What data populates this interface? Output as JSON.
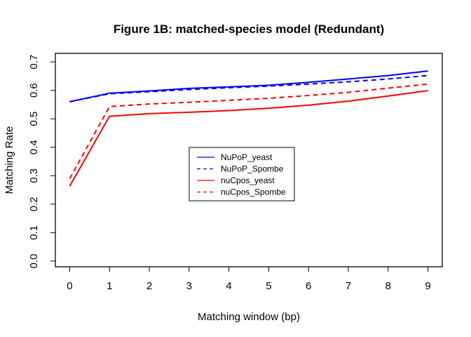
{
  "chart_data": {
    "type": "line",
    "title": "Figure 1B: matched-species model (Redundant)",
    "xlabel": "Matching window (bp)",
    "ylabel": "Matching Rate",
    "x": [
      0,
      1,
      2,
      3,
      4,
      5,
      6,
      7,
      8,
      9
    ],
    "xlim": [
      -0.36,
      9.36
    ],
    "ylim": [
      -0.02,
      0.73
    ],
    "xticks": [
      0,
      1,
      2,
      3,
      4,
      5,
      6,
      7,
      8,
      9
    ],
    "xtick_labels": [
      "0",
      "1",
      "2",
      "3",
      "4",
      "5",
      "6",
      "7",
      "8",
      "9"
    ],
    "yticks": [
      0.0,
      0.1,
      0.2,
      0.3,
      0.4,
      0.5,
      0.6,
      0.7
    ],
    "ytick_labels": [
      "0.0",
      "0.1",
      "0.2",
      "0.3",
      "0.4",
      "0.5",
      "0.6",
      "0.7"
    ],
    "grid": false,
    "legend_position": "center",
    "series": [
      {
        "name": "NuPoP_yeast",
        "color": "#0000ff",
        "dash": "solid",
        "values": [
          0.56,
          0.59,
          0.598,
          0.607,
          0.612,
          0.618,
          0.628,
          0.64,
          0.652,
          0.668
        ]
      },
      {
        "name": "NuPoP_Spombe",
        "color": "#0000ff",
        "dash": "dashed",
        "values": [
          0.56,
          0.588,
          0.595,
          0.603,
          0.609,
          0.615,
          0.622,
          0.63,
          0.64,
          0.652
        ]
      },
      {
        "name": "nuCpos_yeast",
        "color": "#ff0000",
        "dash": "solid",
        "values": [
          0.263,
          0.509,
          0.518,
          0.523,
          0.529,
          0.537,
          0.548,
          0.562,
          0.58,
          0.599
        ]
      },
      {
        "name": "nuCpos_Spombe",
        "color": "#ff0000",
        "dash": "dashed",
        "values": [
          0.29,
          0.543,
          0.552,
          0.558,
          0.565,
          0.572,
          0.582,
          0.593,
          0.608,
          0.622
        ]
      }
    ]
  }
}
